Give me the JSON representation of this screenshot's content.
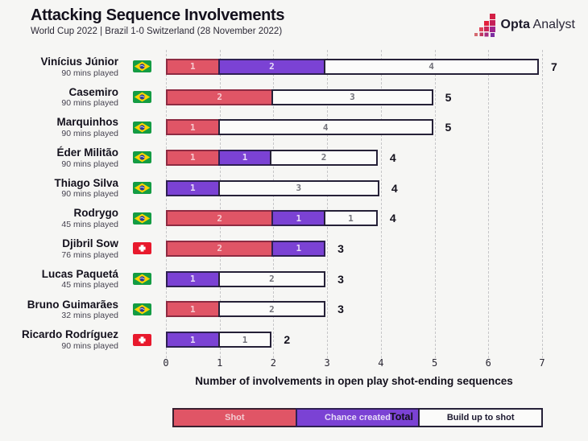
{
  "header": {
    "title": "Attacking Sequence Involvements",
    "subtitle": "World Cup 2022 | Brazil 1-0 Switzerland (28 November 2022)",
    "logo_bold": "Opta",
    "logo_light": "Analyst"
  },
  "chart_data": {
    "type": "bar",
    "stacked": true,
    "orientation": "horizontal",
    "title": "Attacking Sequence Involvements",
    "subtitle": "World Cup 2022 | Brazil 1-0 Switzerland (28 November 2022)",
    "xlabel": "Number of involvements in open play shot-ending sequences",
    "xlim": [
      0,
      7
    ],
    "x_ticks": [
      0,
      1,
      2,
      3,
      4,
      5,
      6,
      7
    ],
    "grid": "vertical-dashed",
    "legend_position": "bottom",
    "total_label": "Total",
    "legend": [
      {
        "label": "Shot",
        "color": "#e05566"
      },
      {
        "label": "Chance created",
        "color": "#7b42d4"
      },
      {
        "label": "Build up to shot",
        "color": "#fbfbfa"
      }
    ],
    "players": [
      {
        "name": "Vinícius Júnior",
        "mins": "90 mins played",
        "flag": "brazil",
        "shot": 1,
        "chance_created": 2,
        "build_up": 4,
        "total": 7
      },
      {
        "name": "Casemiro",
        "mins": "90 mins played",
        "flag": "brazil",
        "shot": 2,
        "chance_created": 0,
        "build_up": 3,
        "total": 5
      },
      {
        "name": "Marquinhos",
        "mins": "90 mins played",
        "flag": "brazil",
        "shot": 1,
        "chance_created": 0,
        "build_up": 4,
        "total": 5
      },
      {
        "name": "Éder Militão",
        "mins": "90 mins played",
        "flag": "brazil",
        "shot": 1,
        "chance_created": 1,
        "build_up": 2,
        "total": 4
      },
      {
        "name": "Thiago Silva",
        "mins": "90 mins played",
        "flag": "brazil",
        "shot": 0,
        "chance_created": 1,
        "build_up": 3,
        "total": 4
      },
      {
        "name": "Rodrygo",
        "mins": "45 mins played",
        "flag": "brazil",
        "shot": 2,
        "chance_created": 1,
        "build_up": 1,
        "total": 4
      },
      {
        "name": "Djibril Sow",
        "mins": "76 mins played",
        "flag": "switzerland",
        "shot": 2,
        "chance_created": 1,
        "build_up": 0,
        "total": 3
      },
      {
        "name": "Lucas Paquetá",
        "mins": "45 mins played",
        "flag": "brazil",
        "shot": 0,
        "chance_created": 1,
        "build_up": 2,
        "total": 3
      },
      {
        "name": "Bruno Guimarães",
        "mins": "32 mins played",
        "flag": "brazil",
        "shot": 1,
        "chance_created": 0,
        "build_up": 2,
        "total": 3
      },
      {
        "name": "Ricardo Rodríguez",
        "mins": "90 mins played",
        "flag": "switzerland",
        "shot": 0,
        "chance_created": 1,
        "build_up": 1,
        "total": 2
      }
    ]
  },
  "colors": {
    "background": "#f6f6f4",
    "text_dark": "#14111d",
    "shot": "#e05566",
    "chance_created": "#7b42d4",
    "build_up": "#fbfbfa",
    "gridline": "#c6c6c8"
  }
}
